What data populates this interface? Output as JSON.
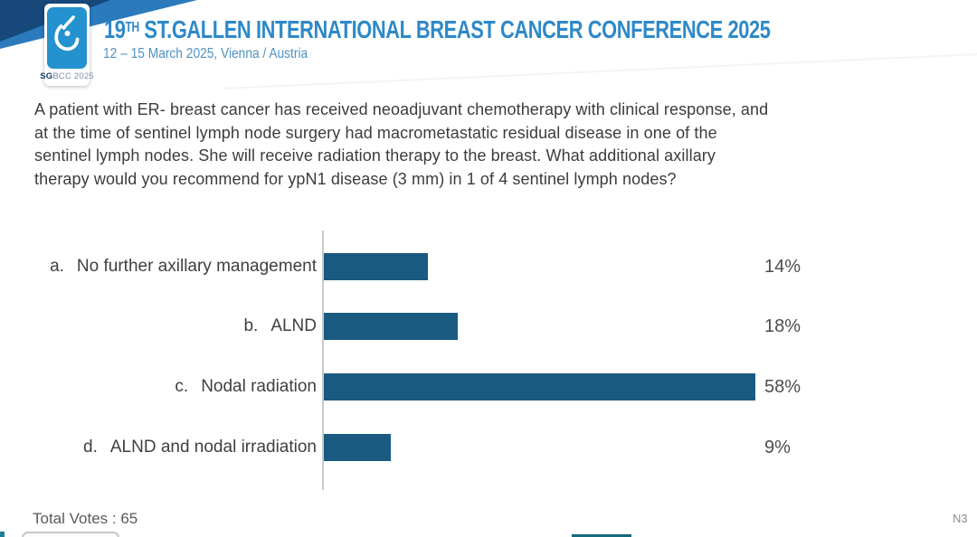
{
  "header": {
    "logo_text_bold": "SG",
    "logo_text_rest": "BCC 2025",
    "title_num": "19",
    "title_sup": "TH",
    "title_rest": " ST.GALLEN INTERNATIONAL BREAST CANCER CONFERENCE 2025",
    "subtitle": "12 – 15 March 2025, Vienna / Austria"
  },
  "question": {
    "lines": [
      "A patient with ER- breast cancer has received neoadjuvant chemotherapy with clinical response, and",
      "at the time of sentinel lymph node surgery had macrometastatic residual disease in one of the",
      "sentinel lymph nodes.  She will receive radiation therapy to the breast.  What additional axillary",
      "therapy would you recommend for ypN1 disease (3 mm) in 1 of 4 sentinel lymph nodes?"
    ]
  },
  "chart_data": {
    "type": "bar",
    "orientation": "horizontal",
    "title": "Audience poll: additional axillary therapy for ypN1 disease (3 mm) in 1 of 4 sentinel lymph nodes",
    "option_letters": [
      "a.",
      "b.",
      "c.",
      "d."
    ],
    "categories": [
      "No further axillary management",
      "ALND",
      "Nodal radiation",
      "ALND and nodal irradiation"
    ],
    "values": [
      14,
      18,
      58,
      9
    ],
    "value_labels": [
      "14%",
      "18%",
      "58%",
      "9%"
    ],
    "xlim": [
      0,
      60
    ],
    "grid": false,
    "legend": false,
    "bar_color": "#1b5a80",
    "axis_color": "#c9c9c9",
    "total_votes": 65
  },
  "footer": {
    "total_votes_label": "Total Votes : 65",
    "slide_number": "N3"
  },
  "colors": {
    "title_blue": "#2e89c8",
    "banner_navy": "#16497a",
    "banner_blue": "#2a7abd",
    "logo_blue": "#2492cf",
    "bar_blue": "#1b5a80"
  }
}
